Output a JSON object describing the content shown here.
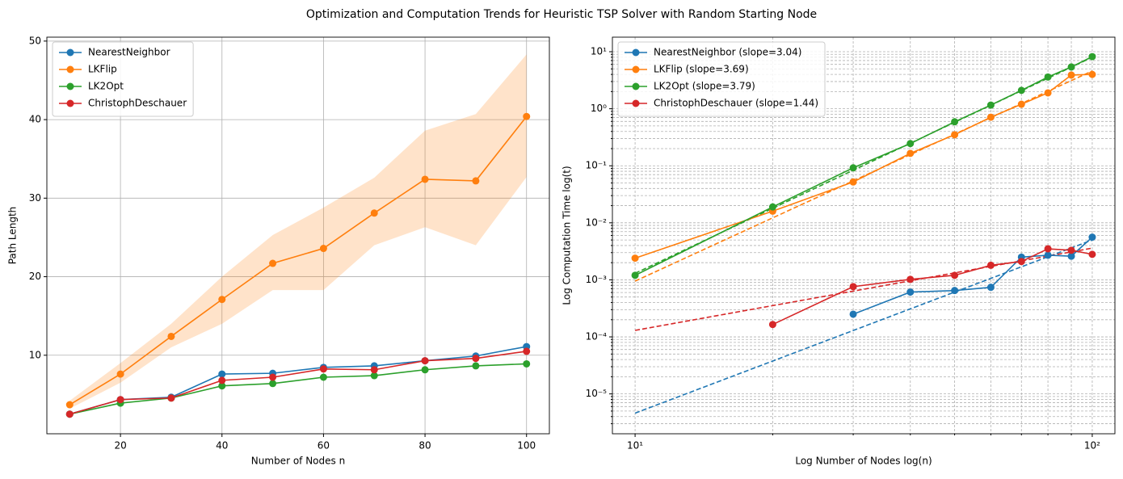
{
  "title": "Optimization and Computation Trends for Heuristic TSP Solver with Random Starting Node",
  "chart_data": [
    {
      "type": "line",
      "xlabel": "Number of Nodes n",
      "ylabel": "Path Length",
      "log_scale": false,
      "grid": true,
      "grid_style": "solid",
      "legend": "upper left",
      "x": [
        10,
        20,
        30,
        40,
        50,
        60,
        70,
        80,
        90,
        100
      ],
      "xlim": [
        5.5,
        104.5
      ],
      "ylim": [
        0,
        50.5
      ],
      "xticks": [
        20,
        40,
        60,
        80,
        100
      ],
      "yticks": [
        10,
        20,
        30,
        40,
        50
      ],
      "series": [
        {
          "name": "NearestNeighbor",
          "color": "#1f77b4",
          "values": [
            2.5,
            4.35,
            4.65,
            7.6,
            7.7,
            8.45,
            8.65,
            9.3,
            9.9,
            11.1
          ]
        },
        {
          "name": "LKFlip",
          "color": "#ff7f0e",
          "values": [
            3.7,
            7.6,
            12.4,
            17.1,
            21.7,
            23.6,
            28.1,
            32.4,
            32.2,
            40.4
          ],
          "lower": [
            3.2,
            6.5,
            11,
            14,
            18.3,
            18.3,
            24,
            26.3,
            24,
            32.7
          ],
          "upper": [
            4.2,
            9,
            14,
            20,
            25.3,
            28.8,
            32.6,
            38.6,
            40.7,
            48.3
          ]
        },
        {
          "name": "LK2Opt",
          "color": "#2ca02c",
          "values": [
            2.5,
            3.9,
            4.55,
            6.1,
            6.4,
            7.2,
            7.4,
            8.15,
            8.65,
            8.9
          ]
        },
        {
          "name": "ChristophDeschauer",
          "color": "#d62728",
          "values": [
            2.5,
            4.35,
            4.55,
            6.8,
            7.2,
            8.25,
            8.15,
            9.3,
            9.6,
            10.5
          ]
        }
      ]
    },
    {
      "type": "line",
      "xlabel": "Log Number of Nodes log(n)",
      "ylabel": "Log Computation Time log(t)",
      "log_scale": true,
      "grid": true,
      "grid_style": "dashed",
      "legend": "upper left",
      "x": [
        10,
        20,
        30,
        40,
        50,
        60,
        70,
        80,
        90,
        100
      ],
      "xlim": [
        8.92,
        112.1
      ],
      "ylim": [
        2e-06,
        18
      ],
      "xticks": [
        {
          "value": 10,
          "label": "10¹"
        },
        {
          "value": 100,
          "label": "10²"
        }
      ],
      "yticks": [
        {
          "value": 1e-05,
          "label": "10⁻⁵"
        },
        {
          "value": 0.0001,
          "label": "10⁻⁴"
        },
        {
          "value": 0.001,
          "label": "10⁻³"
        },
        {
          "value": 0.01,
          "label": "10⁻²"
        },
        {
          "value": 0.1,
          "label": "10⁻¹"
        },
        {
          "value": 1,
          "label": "10⁰"
        },
        {
          "value": 10,
          "label": "10¹"
        }
      ],
      "xminorticks": [
        20,
        30,
        40,
        50,
        60,
        70,
        80,
        90
      ],
      "yminorticks": [
        3e-06,
        4e-06,
        5e-06,
        6e-06,
        7e-06,
        8e-06,
        9e-06,
        2e-05,
        3e-05,
        4e-05,
        5e-05,
        6e-05,
        7e-05,
        8e-05,
        9e-05,
        0.0002,
        0.0003,
        0.0004,
        0.0005,
        0.0006,
        0.0007,
        0.0008,
        0.0009,
        0.002,
        0.003,
        0.004,
        0.005,
        0.006,
        0.007,
        0.008,
        0.009,
        0.02,
        0.03,
        0.04,
        0.05,
        0.06,
        0.07,
        0.08,
        0.09,
        0.2,
        0.3,
        0.4,
        0.5,
        0.6,
        0.7,
        0.8,
        0.9,
        2,
        3,
        4,
        5,
        6,
        7,
        8,
        9
      ],
      "series": [
        {
          "name": "NearestNeighbor (slope=3.04)",
          "color": "#1f77b4",
          "values": [
            null,
            null,
            0.00025,
            0.00061,
            0.00065,
            0.00074,
            0.0025,
            0.0027,
            0.0026,
            0.0056
          ]
        },
        {
          "name": "LKFlip (slope=3.69)",
          "color": "#ff7f0e",
          "values": [
            0.0024,
            0.016,
            0.052,
            0.165,
            0.35,
            0.71,
            1.2,
            1.9,
            3.9,
            4.0
          ]
        },
        {
          "name": "LK2Opt (slope=3.79)",
          "color": "#2ca02c",
          "values": [
            0.0012,
            0.019,
            0.092,
            0.245,
            0.59,
            1.16,
            2.1,
            3.6,
            5.4,
            8.2
          ]
        },
        {
          "name": "ChristophDeschauer (slope=1.44)",
          "color": "#d62728",
          "values": [
            null,
            0.000165,
            0.00076,
            0.00102,
            0.0012,
            0.0018,
            0.0021,
            0.0035,
            0.0033,
            0.0028
          ]
        }
      ],
      "fits": [
        {
          "color": "#1f77b4",
          "x": [
            10,
            100
          ],
          "values": [
            4.6e-06,
            0.005
          ]
        },
        {
          "color": "#ff7f0e",
          "x": [
            10,
            100
          ],
          "values": [
            0.00095,
            4.6
          ]
        },
        {
          "color": "#2ca02c",
          "x": [
            10,
            100
          ],
          "values": [
            0.0013,
            8.0
          ]
        },
        {
          "color": "#d62728",
          "x": [
            10,
            100
          ],
          "values": [
            0.00013,
            0.0036
          ]
        }
      ]
    }
  ]
}
